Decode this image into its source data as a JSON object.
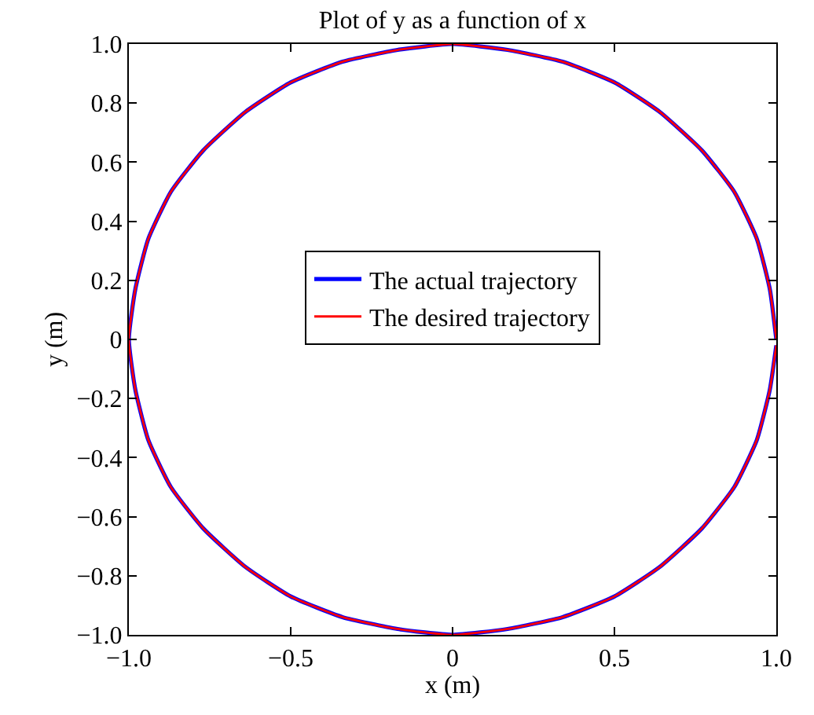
{
  "chart_data": {
    "type": "line",
    "title": "Plot of y as a function of x",
    "xlabel": "x (m)",
    "ylabel": "y (m)",
    "series": [
      {
        "name": "The actual trajectory",
        "color": "#0000ff",
        "x": [
          1,
          0.98,
          0.94,
          0.87,
          0.77,
          0.64,
          0.5,
          0.34,
          0.17,
          0,
          -0.17,
          -0.34,
          -0.5,
          -0.64,
          -0.77,
          -0.87,
          -0.94,
          -0.98,
          -1,
          -0.98,
          -0.94,
          -0.87,
          -0.77,
          -0.64,
          -0.5,
          -0.34,
          -0.17,
          0,
          0.17,
          0.34,
          0.5,
          0.64,
          0.77,
          0.87,
          0.94,
          0.98,
          1
        ],
        "values": [
          0,
          0.17,
          0.34,
          0.5,
          0.64,
          0.77,
          0.87,
          0.94,
          0.98,
          1,
          0.98,
          0.94,
          0.87,
          0.77,
          0.64,
          0.5,
          0.34,
          0.17,
          0,
          -0.17,
          -0.34,
          -0.5,
          -0.64,
          -0.77,
          -0.87,
          -0.94,
          -0.98,
          -1,
          -0.98,
          -0.94,
          -0.87,
          -0.77,
          -0.64,
          -0.5,
          -0.34,
          -0.17,
          -0.02
        ]
      },
      {
        "name": "The desired trajectory",
        "color": "#ff0000",
        "x": [
          1,
          0.98,
          0.94,
          0.87,
          0.77,
          0.64,
          0.5,
          0.34,
          0.17,
          0,
          -0.17,
          -0.34,
          -0.5,
          -0.64,
          -0.77,
          -0.87,
          -0.94,
          -0.98,
          -1,
          -0.98,
          -0.94,
          -0.87,
          -0.77,
          -0.64,
          -0.5,
          -0.34,
          -0.17,
          0,
          0.17,
          0.34,
          0.5,
          0.64,
          0.77,
          0.87,
          0.94,
          0.98,
          1
        ],
        "values": [
          0,
          0.17,
          0.34,
          0.5,
          0.64,
          0.77,
          0.87,
          0.94,
          0.98,
          1,
          0.98,
          0.94,
          0.87,
          0.77,
          0.64,
          0.5,
          0.34,
          0.17,
          0,
          -0.17,
          -0.34,
          -0.5,
          -0.64,
          -0.77,
          -0.87,
          -0.94,
          -0.98,
          -1,
          -0.98,
          -0.94,
          -0.87,
          -0.77,
          -0.64,
          -0.5,
          -0.34,
          -0.17,
          -0.02
        ]
      }
    ],
    "xlim": [
      -1,
      1
    ],
    "xticks": [
      {
        "value": -1,
        "label": "−1.0"
      },
      {
        "value": -0.5,
        "label": "−0.5"
      },
      0,
      0.5,
      {
        "value": 1,
        "label": "1.0"
      }
    ],
    "ylim": [
      -1,
      1
    ],
    "yticks": [
      {
        "value": -1,
        "label": "−1.0"
      },
      {
        "value": -0.8,
        "label": "−0.8"
      },
      {
        "value": -0.6,
        "label": "−0.6"
      },
      {
        "value": -0.4,
        "label": "−0.4"
      },
      {
        "value": -0.2,
        "label": "−0.2"
      },
      0,
      0.2,
      0.4,
      0.6,
      0.8,
      {
        "value": 1,
        "label": "1.0"
      }
    ],
    "legend": "center",
    "marker": "none",
    "line_style": "solid"
  }
}
